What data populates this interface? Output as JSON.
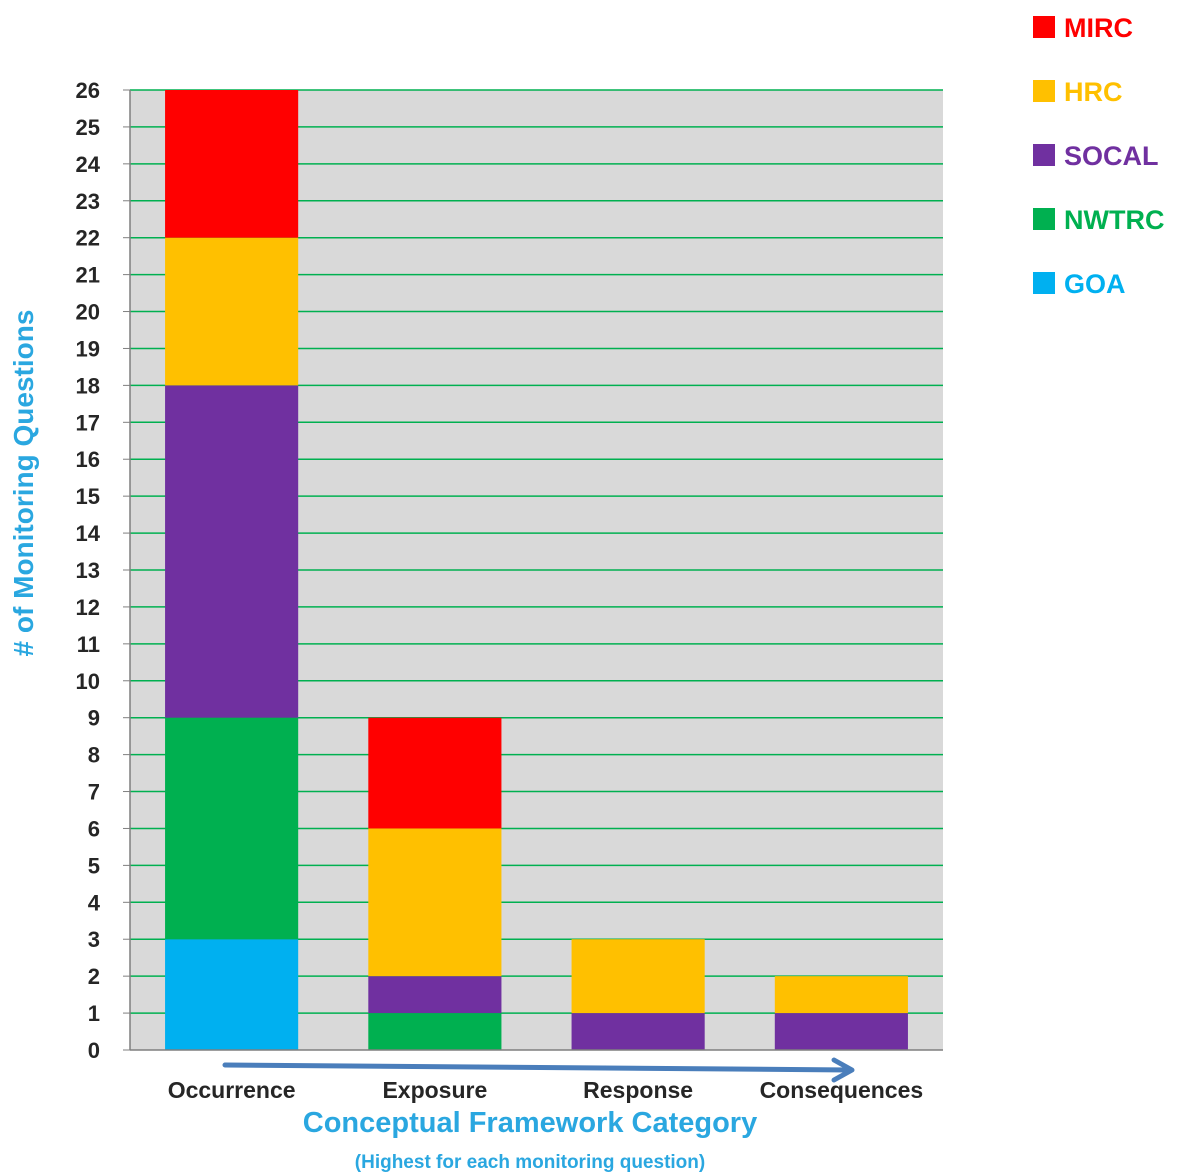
{
  "chart_data": {
    "type": "bar",
    "stacked": true,
    "categories": [
      "Occurrence",
      "Exposure",
      "Response",
      "Consequences"
    ],
    "series": [
      {
        "name": "GOA",
        "color": "#00B0F0",
        "values": [
          3,
          0,
          0,
          0
        ]
      },
      {
        "name": "NWTRC",
        "color": "#00B050",
        "values": [
          6,
          1,
          0,
          0
        ]
      },
      {
        "name": "SOCAL",
        "color": "#7030A0",
        "values": [
          9,
          1,
          1,
          1
        ]
      },
      {
        "name": "HRC",
        "color": "#FFC000",
        "values": [
          4,
          4,
          2,
          1
        ]
      },
      {
        "name": "MIRC",
        "color": "#FF0000",
        "values": [
          4,
          3,
          0,
          0
        ]
      }
    ],
    "legend_order": [
      "MIRC",
      "HRC",
      "SOCAL",
      "NWTRC",
      "GOA"
    ],
    "xlabel": "Conceptual Framework Category",
    "xlabel_sub": "(Highest for each monitoring question)",
    "ylabel": "# of Monitoring Questions",
    "ylim": [
      0,
      26
    ],
    "ytick_step": 1,
    "grid": true,
    "grid_color": "#00B050",
    "plot_background": "#D9D9D9",
    "legend_position": "top-right",
    "arrow_color": "#4A7EBB"
  }
}
